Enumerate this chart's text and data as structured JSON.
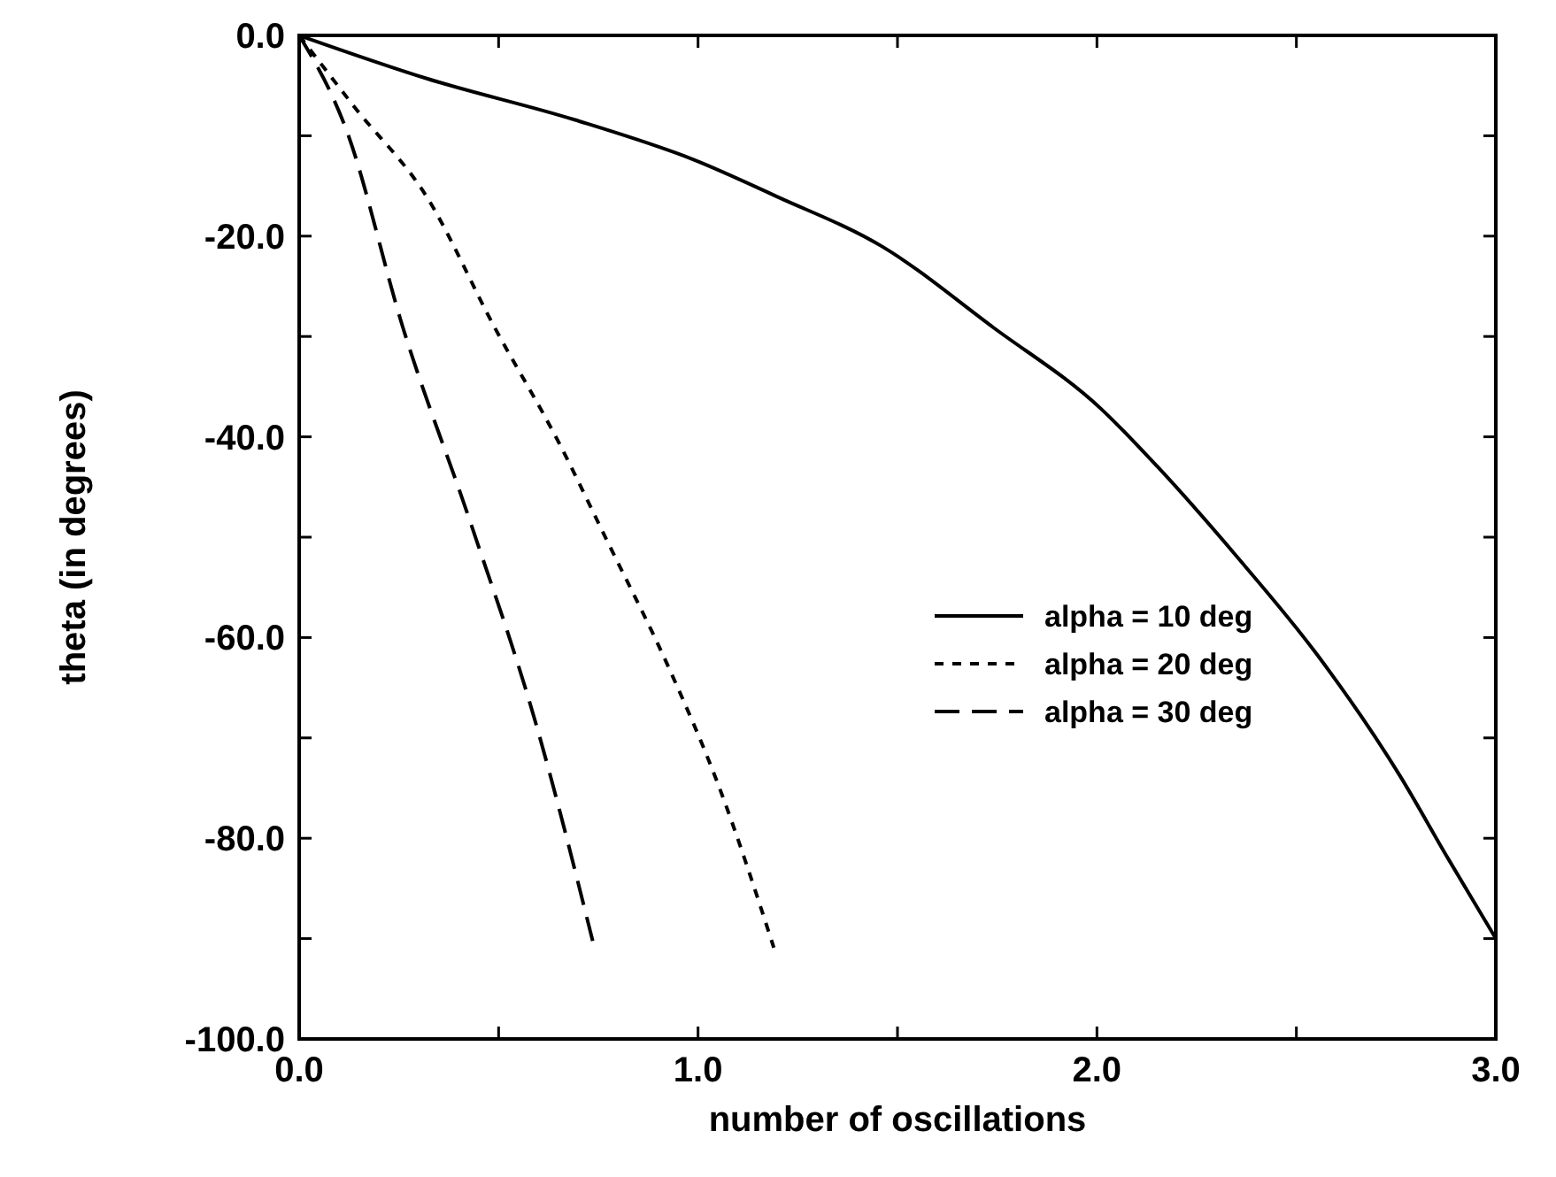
{
  "chart_data": {
    "type": "line",
    "xlabel": "number of oscillations",
    "ylabel": "theta (in degrees)",
    "xlim": [
      0,
      3
    ],
    "ylim": [
      -100,
      0
    ],
    "xticks": [
      {
        "value": 0,
        "label": "0.0"
      },
      {
        "value": 0.5,
        "label": null
      },
      {
        "value": 1,
        "label": "1.0"
      },
      {
        "value": 1.5,
        "label": null
      },
      {
        "value": 2,
        "label": "2.0"
      },
      {
        "value": 2.5,
        "label": null
      },
      {
        "value": 3,
        "label": "3.0"
      }
    ],
    "yticks": [
      {
        "value": -100,
        "label": "-100.0"
      },
      {
        "value": -90,
        "label": null
      },
      {
        "value": -80,
        "label": "-80.0"
      },
      {
        "value": -70,
        "label": null
      },
      {
        "value": -60,
        "label": "-60.0"
      },
      {
        "value": -50,
        "label": null
      },
      {
        "value": -40,
        "label": "-40.0"
      },
      {
        "value": -30,
        "label": null
      },
      {
        "value": -20,
        "label": "-20.0"
      },
      {
        "value": -10,
        "label": null
      },
      {
        "value": 0,
        "label": "0.0"
      }
    ],
    "grid": false,
    "legend": "right",
    "series": [
      {
        "name": "alpha = 10 deg",
        "color": "#000000",
        "line_style": "solid",
        "x": [
          0,
          0.32,
          0.69,
          0.99,
          1.2,
          1.46,
          1.74,
          2.01,
          2.15,
          2.35,
          2.55,
          2.76,
          2.88,
          3.0
        ],
        "values": [
          0,
          -4.3,
          -8.4,
          -12.4,
          -16.1,
          -21,
          -29.1,
          -37.2,
          -42.9,
          -51.9,
          -61.6,
          -73.8,
          -82,
          -90
        ]
      },
      {
        "name": "alpha = 20 deg",
        "color": "#000000",
        "line_style": "dotted",
        "x": [
          0,
          0.14,
          0.32,
          0.49,
          0.65,
          0.77,
          0.93,
          1.05,
          1.19
        ],
        "values": [
          0,
          -7.2,
          -16.1,
          -29.1,
          -40.5,
          -50.2,
          -63.3,
          -74.6,
          -90.9
        ]
      },
      {
        "name": "alpha = 30 deg",
        "color": "#000000",
        "line_style": "dashed",
        "x": [
          0,
          0.12,
          0.26,
          0.43,
          0.59,
          0.74
        ],
        "values": [
          0,
          -9.6,
          -29.1,
          -48.6,
          -68.1,
          -90.9
        ]
      }
    ]
  }
}
